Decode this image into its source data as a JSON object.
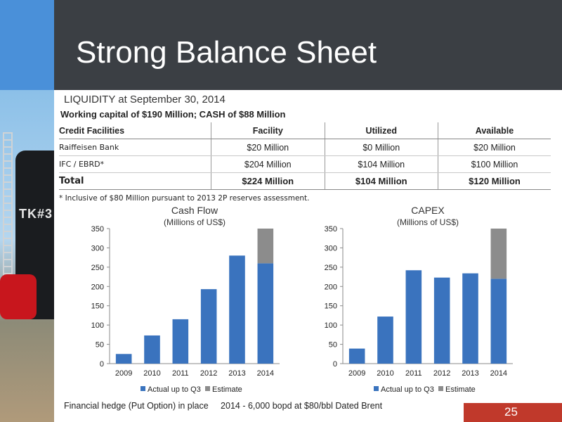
{
  "slide": {
    "title": "Strong Balance Sheet",
    "photo_label": "TK#3",
    "liquidity": "LIQUIDITY at September 30, 2014",
    "working_capital": "Working capital of $190 Million; CASH of $88 Million",
    "footnote": "* Inclusive of $80 Million pursuant to 2013 2P reserves assessment.",
    "bottom_note": "Financial hedge (Put Option) in place     2014 - 6,000 bopd at $80/bbl Dated Brent",
    "page_number": "25"
  },
  "table": {
    "headers": [
      "Credit Facilities",
      "Facility",
      "Utilized",
      "Available"
    ],
    "rows": [
      [
        "Raiffeisen Bank",
        "$20 Million",
        "$0 Million",
        "$20 Million"
      ],
      [
        "IFC / EBRD*",
        "$204 Million",
        "$104 Million",
        "$100 Million"
      ],
      [
        "Total",
        "$224 Million",
        "$104 Million",
        "$120 Million"
      ]
    ]
  },
  "colors": {
    "header_bg": "#3b3f44",
    "accent_blue": "#4a90d9",
    "actual": "#3a73be",
    "estimate": "#8c8c8c",
    "page_badge": "#c0392b"
  },
  "chart_data": [
    {
      "type": "bar",
      "title": "Cash Flow",
      "subtitle": "(Millions of US$)",
      "categories": [
        "2009",
        "2010",
        "2011",
        "2012",
        "2013",
        "2014"
      ],
      "series": [
        {
          "name": "Actual up to Q3",
          "values": [
            25,
            73,
            115,
            193,
            280,
            260
          ]
        },
        {
          "name": "Estimate",
          "values": [
            0,
            0,
            0,
            0,
            0,
            90
          ]
        }
      ],
      "ylim": [
        0,
        350
      ],
      "yticks": [
        0,
        50,
        100,
        150,
        200,
        250,
        300,
        350
      ],
      "stacked": true,
      "grid": false,
      "legend": "bottom"
    },
    {
      "type": "bar",
      "title": "CAPEX",
      "subtitle": "(Millions of US$)",
      "categories": [
        "2009",
        "2010",
        "2011",
        "2012",
        "2013",
        "2014"
      ],
      "series": [
        {
          "name": "Actual up to Q3",
          "values": [
            39,
            122,
            242,
            223,
            234,
            220
          ]
        },
        {
          "name": "Estimate",
          "values": [
            0,
            0,
            0,
            0,
            0,
            130
          ]
        }
      ],
      "ylim": [
        0,
        350
      ],
      "yticks": [
        0,
        50,
        100,
        150,
        200,
        250,
        300,
        350
      ],
      "stacked": true,
      "grid": false,
      "legend": "bottom"
    }
  ]
}
